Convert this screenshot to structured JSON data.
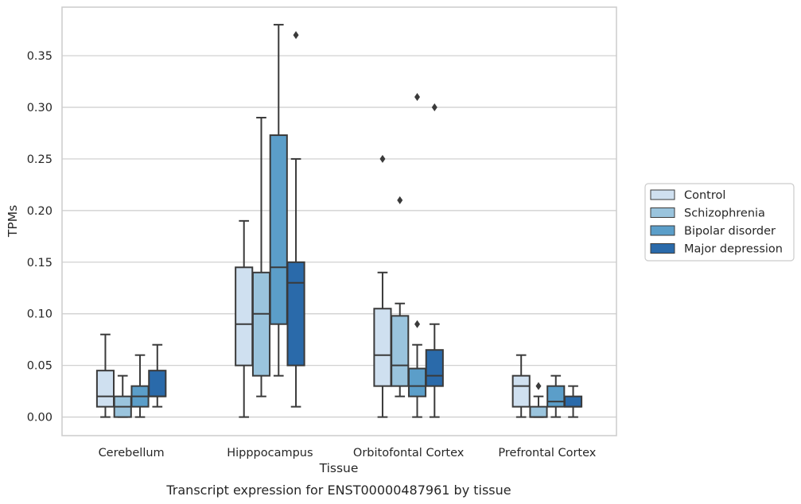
{
  "chart_data": {
    "type": "box",
    "xlabel": "Tissue",
    "ylabel": "TPMs",
    "caption": "Transcript expression for ENST00000487961 by tissue",
    "ylim": [
      -0.018,
      0.397
    ],
    "yticks": [
      "0.00",
      "0.05",
      "0.10",
      "0.15",
      "0.20",
      "0.25",
      "0.30",
      "0.35"
    ],
    "grid": "horizontal",
    "legend_position": "right",
    "categories": [
      "Cerebellum",
      "Hipppocampus",
      "Orbitofontal Cortex",
      "Prefrontal Cortex"
    ],
    "series": [
      {
        "name": "Control",
        "color": "#cfe0f0",
        "boxes": [
          {
            "whisker_low": 0.0,
            "q1": 0.01,
            "median": 0.02,
            "q3": 0.045,
            "whisker_high": 0.08,
            "outliers": []
          },
          {
            "whisker_low": 0.0,
            "q1": 0.05,
            "median": 0.09,
            "q3": 0.145,
            "whisker_high": 0.19,
            "outliers": []
          },
          {
            "whisker_low": 0.0,
            "q1": 0.03,
            "median": 0.06,
            "q3": 0.105,
            "whisker_high": 0.14,
            "outliers": [
              0.25
            ]
          },
          {
            "whisker_low": 0.0,
            "q1": 0.01,
            "median": 0.03,
            "q3": 0.04,
            "whisker_high": 0.06,
            "outliers": []
          }
        ]
      },
      {
        "name": "Schizophrenia",
        "color": "#9ac4dd",
        "boxes": [
          {
            "whisker_low": 0.0,
            "q1": 0.0,
            "median": 0.01,
            "q3": 0.02,
            "whisker_high": 0.04,
            "outliers": []
          },
          {
            "whisker_low": 0.02,
            "q1": 0.04,
            "median": 0.1,
            "q3": 0.14,
            "whisker_high": 0.29,
            "outliers": []
          },
          {
            "whisker_low": 0.02,
            "q1": 0.03,
            "median": 0.05,
            "q3": 0.098,
            "whisker_high": 0.11,
            "outliers": [
              0.21
            ]
          },
          {
            "whisker_low": 0.0,
            "q1": 0.0,
            "median": 0.0,
            "q3": 0.01,
            "whisker_high": 0.02,
            "outliers": [
              0.03
            ]
          }
        ]
      },
      {
        "name": "Bipolar disorder",
        "color": "#5b9ec9",
        "boxes": [
          {
            "whisker_low": 0.0,
            "q1": 0.01,
            "median": 0.02,
            "q3": 0.03,
            "whisker_high": 0.06,
            "outliers": []
          },
          {
            "whisker_low": 0.04,
            "q1": 0.09,
            "median": 0.145,
            "q3": 0.273,
            "whisker_high": 0.38,
            "outliers": []
          },
          {
            "whisker_low": 0.0,
            "q1": 0.02,
            "median": 0.03,
            "q3": 0.047,
            "whisker_high": 0.07,
            "outliers": [
              0.09,
              0.31
            ]
          },
          {
            "whisker_low": 0.0,
            "q1": 0.01,
            "median": 0.015,
            "q3": 0.03,
            "whisker_high": 0.04,
            "outliers": []
          }
        ]
      },
      {
        "name": "Major depression",
        "color": "#2a6aaa",
        "boxes": [
          {
            "whisker_low": 0.01,
            "q1": 0.02,
            "median": 0.02,
            "q3": 0.045,
            "whisker_high": 0.07,
            "outliers": []
          },
          {
            "whisker_low": 0.01,
            "q1": 0.05,
            "median": 0.13,
            "q3": 0.15,
            "whisker_high": 0.25,
            "outliers": [
              0.37
            ]
          },
          {
            "whisker_low": 0.0,
            "q1": 0.03,
            "median": 0.04,
            "q3": 0.065,
            "whisker_high": 0.09,
            "outliers": [
              0.3
            ]
          },
          {
            "whisker_low": 0.0,
            "q1": 0.01,
            "median": 0.01,
            "q3": 0.02,
            "whisker_high": 0.03,
            "outliers": []
          }
        ]
      }
    ]
  }
}
